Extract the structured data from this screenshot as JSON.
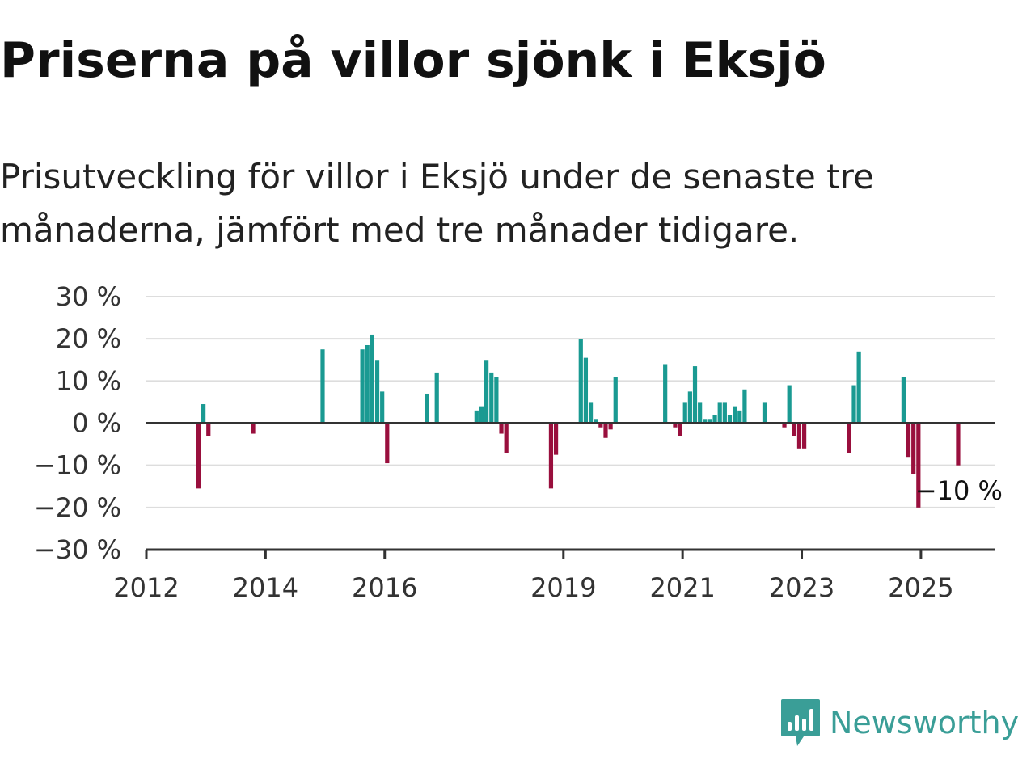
{
  "title": "Priserna på villor sjönk i Eksjö",
  "subtitle": "Prisutveckling för villor i Eksjö under de senaste tre månaderna, jämfört med tre månader tidigare.",
  "brand": {
    "name": "Newsworthy",
    "icon": "newsworthy-logo-icon",
    "color": "#3a9e97"
  },
  "colors": {
    "positive": "#1a9a92",
    "negative": "#990f3d",
    "grid": "#dddddd",
    "axis": "#333333"
  },
  "chart_data": {
    "type": "bar",
    "title": "Priserna på villor sjönk i Eksjö",
    "subtitle": "Prisutveckling för villor i Eksjö under de senaste tre månaderna, jämfört med tre månader tidigare.",
    "xlabel": "",
    "ylabel": "",
    "ylim": [
      -30,
      30
    ],
    "yticks": [
      30,
      20,
      10,
      0,
      -10,
      -20,
      -30
    ],
    "ytick_labels": [
      "30 %",
      "20 %",
      "10 %",
      "0 %",
      "−10 %",
      "−20 %",
      "−30 %"
    ],
    "xlim": [
      "2012-01",
      "2026-04"
    ],
    "xticks": [
      "2012",
      "2014",
      "2016",
      "2019",
      "2021",
      "2023",
      "2025"
    ],
    "grid": true,
    "annotation": {
      "x": "2024-12",
      "text": "−10 %"
    },
    "x": [
      "2012-11",
      "2012-12",
      "2013-01",
      "2013-10",
      "2014-12",
      "2015-08",
      "2015-09",
      "2015-10",
      "2015-11",
      "2015-12",
      "2016-01",
      "2016-09",
      "2016-11",
      "2017-07",
      "2017-08",
      "2017-09",
      "2017-10",
      "2017-11",
      "2017-12",
      "2018-01",
      "2018-10",
      "2018-11",
      "2019-04",
      "2019-05",
      "2019-06",
      "2019-07",
      "2019-08",
      "2019-09",
      "2019-10",
      "2019-11",
      "2020-09",
      "2020-11",
      "2020-12",
      "2021-01",
      "2021-02",
      "2021-03",
      "2021-04",
      "2021-05",
      "2021-06",
      "2021-07",
      "2021-08",
      "2021-09",
      "2021-10",
      "2021-11",
      "2021-12",
      "2022-01",
      "2022-05",
      "2022-09",
      "2022-10",
      "2022-11",
      "2022-12",
      "2023-01",
      "2023-10",
      "2023-11",
      "2023-12",
      "2024-09",
      "2024-10",
      "2024-11",
      "2024-12",
      "2025-08"
    ],
    "values": [
      -15.5,
      4.5,
      -3,
      -2.5,
      17.5,
      17.5,
      18.5,
      21,
      15,
      7.5,
      -9.5,
      7,
      12,
      3,
      4,
      15,
      12,
      11,
      -2.5,
      -7,
      -15.5,
      -7.5,
      20,
      15.5,
      5,
      1,
      -1,
      -3.5,
      -1.5,
      11,
      14,
      -1,
      -3,
      5,
      7.5,
      13.5,
      5,
      1,
      1,
      2,
      5,
      5,
      2,
      4,
      3,
      8,
      5,
      -1,
      9,
      -3,
      -6,
      -6,
      -7,
      9,
      17,
      11,
      -8,
      -12,
      -20,
      -10
    ]
  }
}
